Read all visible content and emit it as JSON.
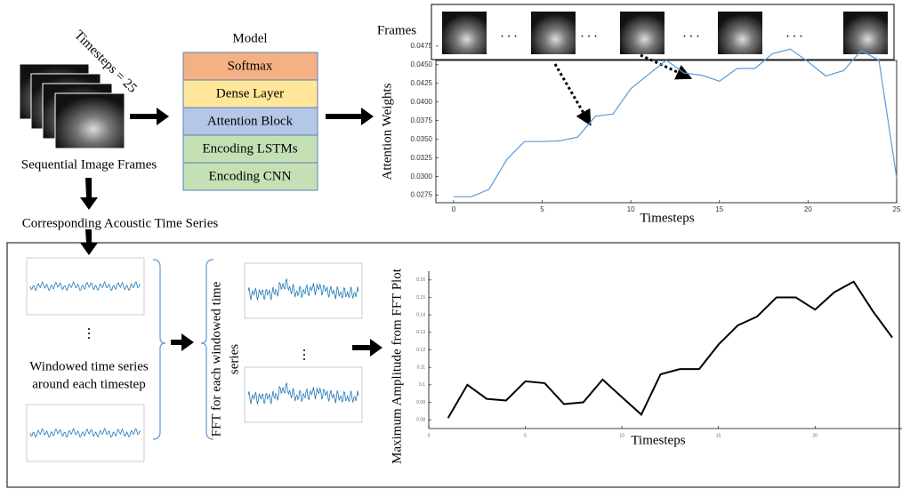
{
  "model": {
    "title": "Model",
    "layers": [
      "Softmax",
      "Dense Layer",
      "Attention Block",
      "Encoding LSTMs",
      "Encoding CNN"
    ]
  },
  "inputs": {
    "timesteps_label": "Timesteps = 25",
    "frames_caption": "Sequential Image Frames",
    "acoustic_caption": "Corresponding Acoustic Time Series",
    "frames_label": "Frames"
  },
  "pipeline": {
    "windowed_label": [
      "Windowed time series",
      "around each timestep"
    ],
    "fft_label": [
      "FFT for each windowed time",
      "series"
    ]
  },
  "chart_data": [
    {
      "type": "line",
      "ylabel": "Attention Weights",
      "xlabel": "Timesteps",
      "color": "#5b9bd5",
      "x": [
        0,
        1,
        2,
        3,
        4,
        5,
        6,
        7,
        8,
        9,
        10,
        11,
        12,
        13,
        14,
        15,
        16,
        17,
        18,
        19,
        20,
        21,
        22,
        23,
        24,
        25
      ],
      "values": [
        0.0273,
        0.0273,
        0.0283,
        0.0323,
        0.0347,
        0.0347,
        0.0348,
        0.0353,
        0.0381,
        0.0384,
        0.0418,
        0.0437,
        0.0456,
        0.0439,
        0.0436,
        0.0428,
        0.0445,
        0.0445,
        0.0465,
        0.0471,
        0.0454,
        0.0435,
        0.0442,
        0.0469,
        0.0456,
        0.0298
      ],
      "xlim": [
        -1,
        25
      ],
      "ylim": [
        0.0265,
        0.0482
      ],
      "xticks": [
        0,
        5,
        10,
        15,
        20,
        25
      ],
      "yticks": [
        0.0275,
        {
          "value": 0.03,
          "label": "0.0300"
        },
        0.0325,
        {
          "value": 0.035,
          "label": "0.0350"
        },
        0.0375,
        {
          "value": 0.04,
          "label": "0.0400"
        },
        0.0425,
        {
          "value": 0.045,
          "label": "0.0450"
        },
        0.0475
      ]
    },
    {
      "type": "line",
      "ylabel": "Maximum Amplitude from FFT Plot",
      "xlabel": "Timesteps",
      "color": "#000000",
      "x": [
        1,
        2,
        3,
        4,
        5,
        6,
        7,
        8,
        9,
        10,
        11,
        12,
        13,
        14,
        15,
        16,
        17,
        18,
        19,
        20,
        21,
        22,
        23,
        24
      ],
      "values": [
        0.081,
        0.1,
        0.092,
        0.091,
        0.102,
        0.101,
        0.089,
        0.09,
        0.103,
        0.093,
        0.083,
        0.106,
        0.109,
        0.109,
        0.123,
        0.134,
        0.139,
        0.15,
        0.15,
        0.143,
        0.153,
        0.159,
        0.142,
        0.127
      ],
      "xlim": [
        0,
        24.5
      ],
      "ylim": [
        0.075,
        0.165
      ],
      "xticks": [
        0,
        5,
        10,
        15,
        20
      ],
      "yticks": [
        0.08,
        0.09,
        0.1,
        0.11,
        0.12,
        0.13,
        0.14,
        0.15,
        0.16
      ]
    }
  ]
}
